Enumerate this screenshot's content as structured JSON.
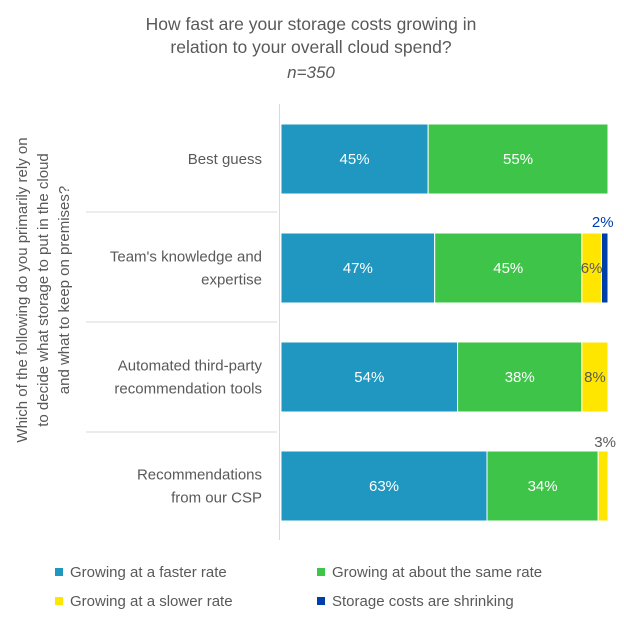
{
  "chart_data": {
    "type": "bar",
    "orientation": "horizontal",
    "stacked": true,
    "title": "How fast are your storage costs growing in relation to your overall cloud spend?",
    "subtitle": "n=350",
    "ylabel": "Which of the following do you primarily rely on to decide what storage to put in the cloud and what to keep on premises?",
    "categories": [
      "Best guess",
      "Team's knowledge and expertise",
      "Automated third-party recommendation tools",
      "Recommendations from our CSP"
    ],
    "category_lines": [
      [
        "Best guess"
      ],
      [
        "Team's knowledge and",
        "expertise"
      ],
      [
        "Automated third-party",
        "recommendation tools"
      ],
      [
        "Recommendations",
        "from our CSP"
      ]
    ],
    "series": [
      {
        "name": "Growing at a faster rate",
        "color": "#1f97c1",
        "values": [
          45,
          47,
          54,
          63
        ],
        "labels": [
          "45%",
          "47%",
          "54%",
          "63%"
        ]
      },
      {
        "name": "Growing at about the same rate",
        "color": "#3fc44a",
        "values": [
          55,
          45,
          38,
          34
        ],
        "labels": [
          "55%",
          "45%",
          "38%",
          "34%"
        ]
      },
      {
        "name": "Growing at a slower rate",
        "color": "#ffe600",
        "values": [
          0,
          6,
          8,
          3
        ],
        "labels": [
          "",
          "6%",
          "8%",
          "3%"
        ]
      },
      {
        "name": "Storage costs are shrinking",
        "color": "#003ea8",
        "values": [
          0,
          2,
          0,
          0
        ],
        "labels": [
          "",
          "2%",
          "",
          ""
        ]
      }
    ],
    "xlim": [
      0,
      100
    ],
    "grid": false,
    "legend_position": "bottom"
  }
}
